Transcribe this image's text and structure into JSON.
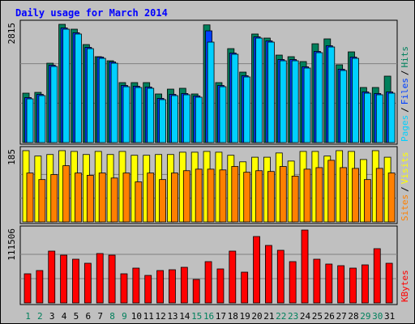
{
  "chart_data": {
    "type": "bar",
    "title": "Daily usage for March 2014",
    "categories": [
      "1",
      "2",
      "3",
      "4",
      "5",
      "6",
      "7",
      "8",
      "9",
      "10",
      "11",
      "12",
      "13",
      "14",
      "15",
      "16",
      "17",
      "18",
      "19",
      "20",
      "21",
      "22",
      "23",
      "24",
      "25",
      "26",
      "27",
      "28",
      "29",
      "30",
      "31"
    ],
    "category_colors": [
      "#00805c",
      "#00805c",
      "#000000",
      "#000000",
      "#000000",
      "#000000",
      "#000000",
      "#00805c",
      "#00805c",
      "#000000",
      "#000000",
      "#000000",
      "#000000",
      "#000000",
      "#00805c",
      "#00805c",
      "#000000",
      "#000000",
      "#000000",
      "#000000",
      "#000000",
      "#00805c",
      "#00805c",
      "#000000",
      "#000000",
      "#000000",
      "#000000",
      "#000000",
      "#00805c",
      "#00805c",
      "#000000"
    ],
    "legend_separator": "/",
    "panels": [
      {
        "ylim": [
          0,
          2815
        ],
        "series": [
          {
            "name": "Hits",
            "color": "#00805c",
            "values": [
              1176,
              1195,
              1889,
              2815,
              2699,
              2333,
              2044,
              1947,
              1427,
              1427,
              1427,
              1157,
              1272,
              1292,
              1157,
              2801,
              1427,
              2236,
              1677,
              2584,
              2487,
              2082,
              2044,
              1928,
              2352,
              2468,
              1851,
              2159,
              1311,
              1311,
              1581
            ]
          },
          {
            "name": "Files",
            "color": "#0040ff",
            "values": [
              1071,
              1148,
              1842,
              2729,
              2614,
              2266,
              2035,
              1919,
              1360,
              1341,
              1322,
              1052,
              1148,
              1168,
              1110,
              2660,
              1360,
              2132,
              1592,
              2517,
              2421,
              1977,
              1977,
              1804,
              2170,
              2305,
              1746,
              2035,
              1206,
              1168,
              1206
            ]
          },
          {
            "name": "Pages",
            "color": "#00d0ff",
            "values": [
              1041,
              1118,
              1812,
              2699,
              2584,
              2236,
              2005,
              1889,
              1330,
              1311,
              1292,
              1022,
              1118,
              1138,
              1080,
              2391,
              1330,
              2102,
              1562,
              2487,
              2391,
              1947,
              1947,
              1774,
              2140,
              2275,
              1716,
              2005,
              1176,
              1138,
              1176
            ]
          }
        ]
      },
      {
        "ylim": [
          0,
          185
        ],
        "series": [
          {
            "name": "Visits",
            "color": "#ffff00",
            "values": [
              185,
              171,
              175,
              185,
              183,
              175,
              183,
              175,
              183,
              173,
              173,
              175,
              175,
              181,
              181,
              183,
              181,
              173,
              156,
              168,
              168,
              179,
              158,
              183,
              183,
              171,
              185,
              183,
              162,
              185,
              168
            ]
          },
          {
            "name": "Sites",
            "color": "#ff8000",
            "values": [
              127,
              110,
              123,
              146,
              127,
              121,
              127,
              114,
              127,
              104,
              127,
              110,
              127,
              133,
              137,
              137,
              135,
              144,
              129,
              133,
              131,
              144,
              119,
              137,
              141,
              160,
              141,
              139,
              110,
              139,
              127
            ]
          }
        ]
      },
      {
        "ylim": [
          0,
          111506
        ],
        "series": [
          {
            "name": "KBytes",
            "color": "#ff0000",
            "values": [
              44604,
              49560,
              79296,
              73101,
              66906,
              60711,
              75579,
              73101,
              44604,
              53277,
              42126,
              49560,
              50799,
              54516,
              35931,
              63189,
              52038,
              79296,
              47082,
              101598,
              87969,
              80535,
              63189,
              111506,
              66906,
              59472,
              56994,
              53277,
              58233,
              83013,
              60711
            ]
          }
        ]
      }
    ]
  }
}
